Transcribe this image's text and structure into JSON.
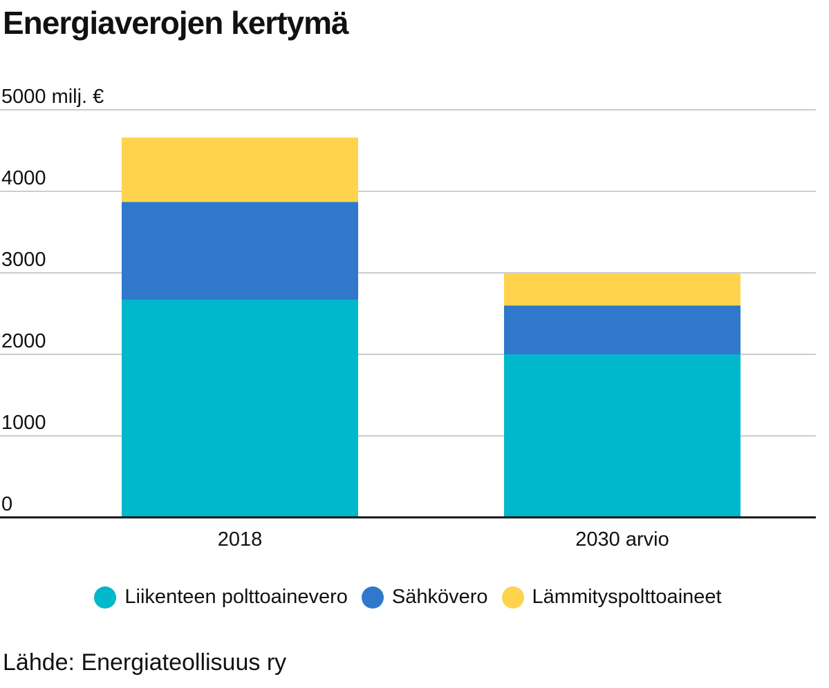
{
  "chart_data": {
    "type": "bar",
    "stacked": true,
    "title": "Energiaverojen kertymä",
    "unit_label": "5000 milj. €",
    "categories": [
      "2018",
      "2030 arvio"
    ],
    "series": [
      {
        "name": "Liikenteen polttoainevero",
        "values": [
          2670,
          2000
        ],
        "color": "#00b8cc"
      },
      {
        "name": "Sähkövero",
        "values": [
          1200,
          600
        ],
        "color": "#2f78cc"
      },
      {
        "name": "Lämmityspolttoaineet",
        "values": [
          790,
          390
        ],
        "color": "#ffd34d"
      }
    ],
    "ylim": [
      0,
      5000
    ],
    "yticks": [
      0,
      1000,
      2000,
      3000,
      4000,
      5000
    ],
    "ytick_labels": [
      "0",
      "1000",
      "2000",
      "3000",
      "4000",
      "5000 milj. €"
    ],
    "grid": true,
    "legend_position": "bottom-center",
    "source": "Lähde: Energiateollisuus ry"
  }
}
